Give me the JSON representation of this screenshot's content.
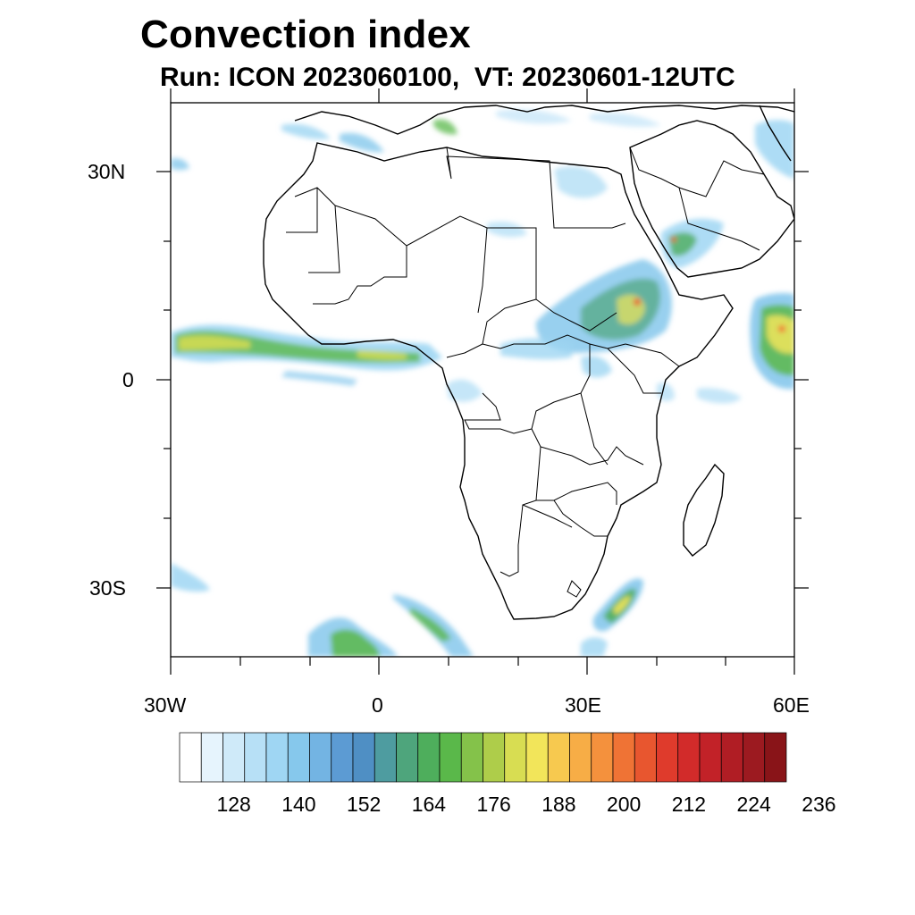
{
  "title": "Convection index",
  "subtitle": "Run: ICON 2023060100,  VT: 20230601-12UTC",
  "map": {
    "region": "Africa",
    "lon_range": [
      -30,
      60
    ],
    "lat_range": [
      -40,
      40
    ],
    "lat_labels": [
      "30N",
      "0",
      "30S"
    ],
    "lon_labels": [
      "30W",
      "0",
      "30E",
      "60E"
    ],
    "coastline_color": "#000000"
  },
  "colorbar": {
    "labels": [
      "128",
      "140",
      "152",
      "164",
      "176",
      "188",
      "200",
      "212",
      "224",
      "236"
    ],
    "colors": [
      "#ffffff",
      "#e6f4fd",
      "#cfeaf9",
      "#b7e0f6",
      "#9fd6f3",
      "#86c8ec",
      "#73b4e3",
      "#5c9bd3",
      "#4f8fc4",
      "#4e9ca0",
      "#4ea57c",
      "#4eae5c",
      "#5ab84a",
      "#84c24a",
      "#aecd4a",
      "#d8dd52",
      "#f2e55a",
      "#f7c94f",
      "#f7ad46",
      "#f4913d",
      "#ef7335",
      "#e8562f",
      "#df3b2c",
      "#d22b2a",
      "#c22228",
      "#b01d24",
      "#9c1a20",
      "#891418"
    ]
  }
}
